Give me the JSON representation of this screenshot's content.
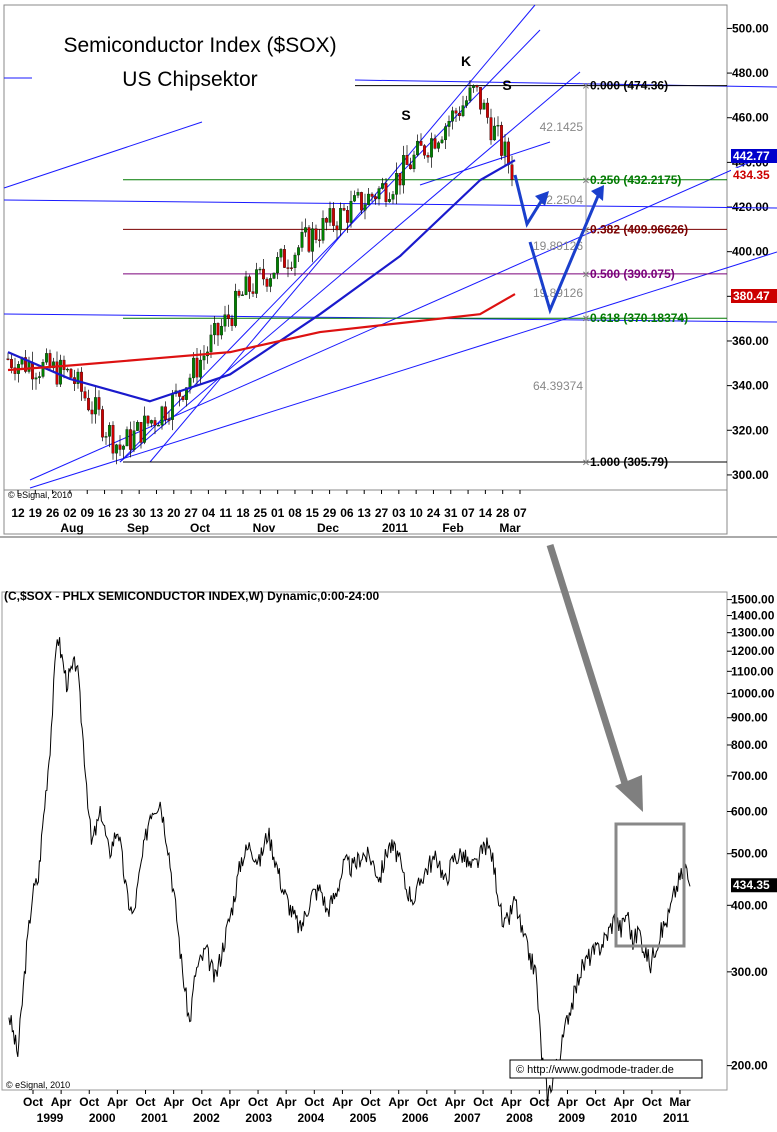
{
  "chart_data": [
    {
      "type": "candlestick",
      "title": "Semiconductor Index  ($SOX)",
      "subtitle": "US Chipsektor",
      "ylim": [
        292,
        530
      ],
      "y_ticks": [
        "500.00",
        "480.00",
        "460.00",
        "440.00",
        "420.00",
        "400.00",
        "380.00",
        "360.00",
        "340.00",
        "320.00",
        "300.00"
      ],
      "x_tick_days": [
        "12",
        "19",
        "26",
        "02",
        "09",
        "16",
        "23",
        "30",
        "13",
        "20",
        "27",
        "04",
        "11",
        "18",
        "25",
        "01",
        "08",
        "15",
        "29",
        "06",
        "13",
        "27",
        "03",
        "10",
        "24",
        "31",
        "07",
        "14",
        "28",
        "07"
      ],
      "x_months": [
        "Aug",
        "Sep",
        "Oct",
        "Nov",
        "Dec",
        "2011",
        "Feb",
        "Mar"
      ],
      "series": [
        {
          "name": "",
          "type": "ohlc",
          "close_path_x": [
            "Jul 2010",
            "Aug 2010",
            "Sep 2010",
            "Oct 2010",
            "Nov 2010",
            "Dec 2010",
            "Jan 2011",
            "Feb 2011",
            "Mar 2011"
          ],
          "close_path": [
            352,
            345,
            312,
            334,
            382,
            410,
            432,
            472,
            434
          ]
        },
        {
          "name": "",
          "type": "moving_average_50",
          "values": [
            355,
            343,
            333,
            345,
            372,
            398,
            432,
            441
          ]
        },
        {
          "name": "",
          "type": "moving_average_200",
          "values": [
            347,
            349,
            352,
            355,
            364,
            368,
            372,
            381
          ]
        }
      ],
      "fibonacci": [
        {
          "level": "0.000",
          "value": "(474.36)",
          "color": "#000000"
        },
        {
          "level": "0.250",
          "value": "(432.2175)",
          "color": "#007a00"
        },
        {
          "level": "0.382",
          "value": "(409.96626)",
          "color": "#7a0000"
        },
        {
          "level": "0.500",
          "value": "(390.075)",
          "color": "#7a007a"
        },
        {
          "level": "0.618",
          "value": "(370.18374)",
          "color": "#007a00"
        },
        {
          "level": "1.000",
          "value": "(305.79)",
          "color": "#000000"
        }
      ],
      "fib_distances": [
        "42.1425",
        "22.2504",
        "19.89126",
        "19.89126",
        "64.39374"
      ],
      "pattern_labels": [
        "S",
        "K",
        "S"
      ],
      "price_tags": [
        {
          "text": "442.77",
          "bg": "#0000cc",
          "fg": "#ffffff"
        },
        {
          "text": "434.35",
          "bg": "#ffffff",
          "fg": "#cc0000"
        },
        {
          "text": "380.47",
          "bg": "#cc0000",
          "fg": "#ffffff"
        }
      ],
      "watermark": "© eSignal, 2010"
    },
    {
      "type": "line",
      "title": "(C,$SOX - PHLX SEMICONDUCTOR INDEX,W) Dynamic,0:00-24:00",
      "y_scale": "log",
      "ylim": [
        180,
        1550
      ],
      "y_ticks": [
        "1500.00",
        "1400.00",
        "1300.00",
        "1200.00",
        "1100.00",
        "1000.00",
        "900.00",
        "800.00",
        "700.00",
        "600.00",
        "500.00",
        "400.00",
        "300.00",
        "200.00"
      ],
      "x_months": [
        "Oct",
        "Apr",
        "Oct",
        "Apr",
        "Oct",
        "Apr",
        "Oct",
        "Apr",
        "Oct",
        "Apr",
        "Oct",
        "Apr",
        "Oct",
        "Apr",
        "Oct",
        "Apr",
        "Oct",
        "Apr",
        "Oct",
        "Apr",
        "Oct",
        "Apr",
        "Oct",
        "Mar"
      ],
      "x_years": [
        "1999",
        "2000",
        "2001",
        "2002",
        "2003",
        "2004",
        "2005",
        "2006",
        "2007",
        "2008",
        "2009",
        "2010",
        "2011"
      ],
      "x": [
        1999.6,
        1999.75,
        1999.9,
        2000.0,
        2000.1,
        2000.17,
        2000.3,
        2000.42,
        2000.58,
        2000.75,
        2000.92,
        2001.0,
        2001.17,
        2001.3,
        2001.45,
        2001.6,
        2001.71,
        2001.85,
        2002.0,
        2002.17,
        2002.3,
        2002.45,
        2002.55,
        2002.67,
        2002.77,
        2002.95,
        2003.1,
        2003.25,
        2003.4,
        2003.55,
        2003.7,
        2003.85,
        2004.0,
        2004.1,
        2004.25,
        2004.4,
        2004.55,
        2004.62,
        2004.75,
        2004.9,
        2005.0,
        2005.15,
        2005.3,
        2005.45,
        2005.6,
        2005.75,
        2005.9,
        2006.05,
        2006.2,
        2006.35,
        2006.5,
        2006.6,
        2006.75,
        2006.9,
        2007.0,
        2007.15,
        2007.3,
        2007.45,
        2007.55,
        2007.7,
        2007.8,
        2007.9,
        2008.0,
        2008.1,
        2008.2,
        2008.3,
        2008.45,
        2008.55,
        2008.65,
        2008.75,
        2008.9,
        2009.0,
        2009.1,
        2009.2,
        2009.3,
        2009.45,
        2009.6,
        2009.75,
        2009.9,
        2010.0,
        2010.1,
        2010.2,
        2010.3,
        2010.4,
        2010.5,
        2010.6,
        2010.7,
        2010.8,
        2010.9,
        2011.0,
        2011.1,
        2011.17
      ],
      "values": [
        250,
        210,
        330,
        420,
        450,
        560,
        800,
        1300,
        1050,
        1150,
        680,
        520,
        600,
        500,
        560,
        420,
        380,
        480,
        600,
        630,
        520,
        380,
        300,
        240,
        300,
        330,
        290,
        340,
        400,
        490,
        520,
        480,
        550,
        500,
        430,
        390,
        360,
        380,
        420,
        430,
        390,
        420,
        480,
        470,
        500,
        490,
        450,
        520,
        500,
        430,
        410,
        450,
        480,
        490,
        440,
        490,
        500,
        470,
        480,
        520,
        500,
        430,
        360,
        380,
        410,
        360,
        320,
        300,
        210,
        175,
        200,
        220,
        250,
        270,
        300,
        320,
        330,
        350,
        380,
        360,
        390,
        340,
        360,
        330,
        310,
        340,
        360,
        380,
        420,
        450,
        470,
        434
      ],
      "price_tag": "434.35",
      "website": "http://www.godmode-trader.de",
      "watermark": "© eSignal, 2010"
    }
  ]
}
